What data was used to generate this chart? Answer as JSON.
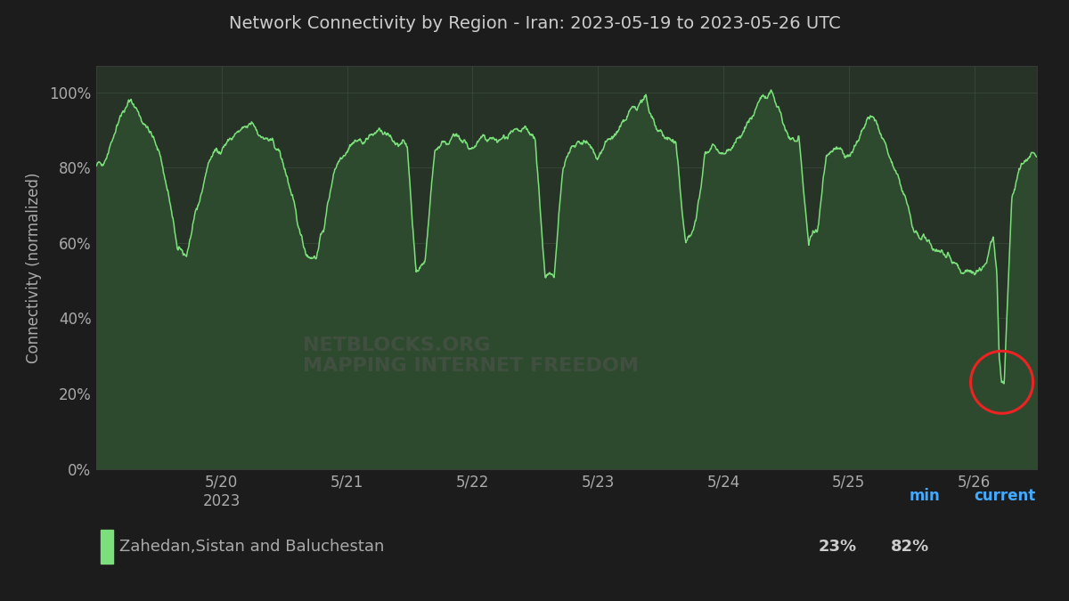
{
  "title": "Network Connectivity by Region - Iran: 2023-05-19 to 2023-05-26 UTC",
  "ylabel": "Connectivity (normalized)",
  "bg_color": "#1c1c1c",
  "plot_bg_color": "#263326",
  "fill_color": "#2e4a2e",
  "line_color": "#7be07b",
  "grid_color": "#3d4f3d",
  "title_color": "#cccccc",
  "tick_color": "#aaaaaa",
  "legend_label": "Zahedan,Sistan and Baluchestan",
  "legend_min_label": "min",
  "legend_current_label": "current",
  "legend_min_value": "23%",
  "legend_current_value": "82%",
  "legend_min_color": "#44aaff",
  "legend_current_color": "#44aaff",
  "legend_value_color": "#cccccc",
  "legend_bg_color": "#2a2a2a",
  "circle_color": "#ee2222",
  "xtick_labels": [
    "5/20\n2023",
    "5/21",
    "5/22",
    "5/23",
    "5/24",
    "5/25",
    "5/26"
  ],
  "xtick_positions": [
    1,
    2,
    3,
    4,
    5,
    6,
    7
  ],
  "ytick_labels": [
    "0%",
    "20%",
    "40%",
    "60%",
    "80%",
    "100%"
  ],
  "ytick_positions": [
    0,
    20,
    40,
    60,
    80,
    100
  ],
  "ylim": [
    0,
    107
  ],
  "xlim": [
    0.0,
    7.5
  ],
  "keypoints_t": [
    0.0,
    0.08,
    0.18,
    0.28,
    0.38,
    0.5,
    0.58,
    0.65,
    0.72,
    0.8,
    0.9,
    0.97,
    1.0,
    1.05,
    1.12,
    1.18,
    1.25,
    1.32,
    1.38,
    1.45,
    1.52,
    1.6,
    1.68,
    1.75,
    1.82,
    1.9,
    1.97,
    2.0,
    2.05,
    2.12,
    2.18,
    2.25,
    2.32,
    2.4,
    2.48,
    2.55,
    2.62,
    2.7,
    2.78,
    2.85,
    2.93,
    2.98,
    3.0,
    3.05,
    3.12,
    3.2,
    3.28,
    3.35,
    3.42,
    3.5,
    3.58,
    3.65,
    3.72,
    3.8,
    3.88,
    3.95,
    4.0,
    4.08,
    4.18,
    4.28,
    4.38,
    4.48,
    4.55,
    4.62,
    4.7,
    4.78,
    4.85,
    4.93,
    4.98,
    5.0,
    5.08,
    5.18,
    5.28,
    5.38,
    5.45,
    5.52,
    5.6,
    5.68,
    5.75,
    5.82,
    5.9,
    5.97,
    6.0,
    6.08,
    6.15,
    6.22,
    6.3,
    6.38,
    6.45,
    6.52,
    6.58,
    6.65,
    6.72,
    6.8,
    6.88,
    6.95,
    7.0,
    7.05,
    7.1,
    7.15,
    7.18,
    7.2,
    7.22,
    7.24,
    7.26,
    7.3,
    7.38,
    7.45,
    7.5
  ],
  "keypoints_y": [
    80,
    83,
    93,
    98,
    92,
    85,
    72,
    58,
    57,
    68,
    82,
    85,
    85,
    87,
    89,
    90,
    92,
    88,
    87,
    85,
    78,
    66,
    57,
    56,
    65,
    80,
    84,
    85,
    87,
    87,
    88,
    90,
    88,
    87,
    86,
    52,
    55,
    85,
    87,
    88,
    87,
    85,
    85,
    87,
    88,
    87,
    88,
    89,
    90,
    88,
    50,
    52,
    80,
    85,
    87,
    85,
    83,
    87,
    90,
    96,
    98,
    90,
    88,
    86,
    60,
    65,
    83,
    86,
    84,
    83,
    87,
    90,
    97,
    100,
    94,
    88,
    87,
    60,
    64,
    83,
    86,
    84,
    83,
    87,
    93,
    92,
    85,
    78,
    72,
    63,
    61,
    60,
    58,
    57,
    53,
    52,
    52,
    53,
    55,
    62,
    52,
    30,
    23,
    23,
    40,
    72,
    81,
    83,
    83
  ]
}
